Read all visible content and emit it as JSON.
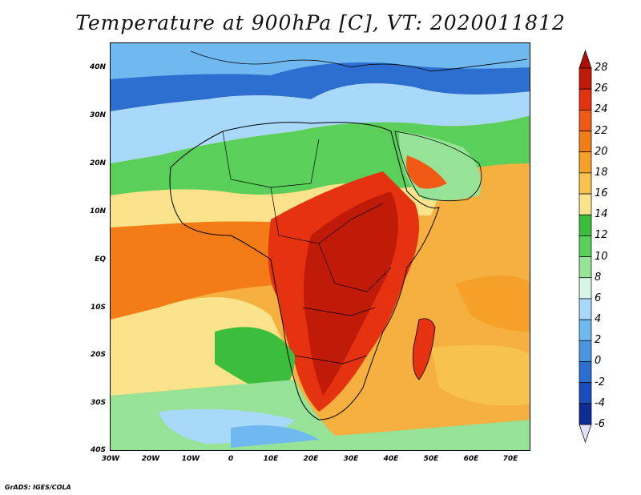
{
  "title": "Temperature at 900hPa [C], VT: 2020011812",
  "credit": "GrADS: IGES/COLA",
  "lat_labels": [
    "40N",
    "30N",
    "20N",
    "10N",
    "EQ",
    "10S",
    "20S",
    "30S",
    "40S"
  ],
  "lon_labels": [
    "30W",
    "20W",
    "10W",
    "0",
    "10E",
    "20E",
    "30E",
    "40E",
    "50E",
    "60E",
    "70E"
  ],
  "colorbar": {
    "labels": [
      "28",
      "26",
      "24",
      "22",
      "20",
      "18",
      "16",
      "14",
      "12",
      "10",
      "8",
      "6",
      "4",
      "2",
      "0",
      "-2",
      "-4",
      "-6"
    ],
    "colors": [
      "#c01a08",
      "#e53210",
      "#f05a14",
      "#f47c18",
      "#f5a028",
      "#f7c24d",
      "#fbe38c",
      "#3cbe3c",
      "#5ad05a",
      "#96e296",
      "#d9f5e8",
      "#a8d8fa",
      "#6fb8f0",
      "#4a96e0",
      "#2c6fd0",
      "#1a4cbc",
      "#0e2b96",
      "#061468"
    ],
    "over_color": "#b01004",
    "under_color": "#e0e0f8"
  },
  "map": {
    "region": "Africa",
    "lon_range": [
      -30,
      75
    ],
    "lat_range": [
      -40,
      45
    ],
    "variable": "temperature",
    "level": "900hPa",
    "units": "C",
    "valid_time": "2020011812"
  }
}
